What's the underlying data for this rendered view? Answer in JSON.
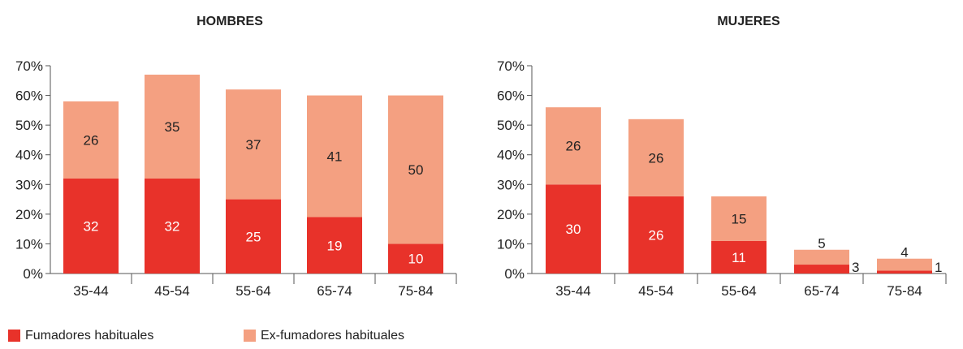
{
  "chart_data": [
    {
      "type": "bar",
      "stacked": true,
      "title": "HOMBRES",
      "categories": [
        "35-44",
        "45-54",
        "55-64",
        "65-74",
        "75-84"
      ],
      "series": [
        {
          "name": "Fumadores habituales",
          "values": [
            32,
            32,
            25,
            19,
            10
          ],
          "labels": [
            "32",
            "32",
            "25",
            "19",
            "10"
          ]
        },
        {
          "name": "Ex-fumadores habituales",
          "values": [
            26,
            35,
            37,
            41,
            50
          ],
          "labels": [
            "26",
            "35",
            "37",
            "41",
            "50"
          ]
        }
      ],
      "ylim": [
        0,
        70
      ],
      "yticks": [
        "0%",
        "10%",
        "20%",
        "30%",
        "40%",
        "50%",
        "60%",
        "70%"
      ],
      "grid": false
    },
    {
      "type": "bar",
      "stacked": true,
      "title": "MUJERES",
      "categories": [
        "35-44",
        "45-54",
        "55-64",
        "65-74",
        "75-84"
      ],
      "series": [
        {
          "name": "Fumadores habituales",
          "values": [
            30,
            26,
            11,
            3,
            1
          ],
          "labels": [
            "30",
            "26",
            "11",
            "3",
            "1"
          ]
        },
        {
          "name": "Ex-fumadores habituales",
          "values": [
            26,
            26,
            15,
            5,
            4
          ],
          "labels": [
            "26",
            "26",
            "15",
            "5",
            "4"
          ]
        }
      ],
      "ylim": [
        0,
        70
      ],
      "yticks": [
        "0%",
        "10%",
        "20%",
        "30%",
        "40%",
        "50%",
        "60%",
        "70%"
      ],
      "grid": false
    }
  ],
  "legend": {
    "placement": "bottom-left",
    "items": [
      {
        "label": "Fumadores habituales",
        "color": "#e8322a"
      },
      {
        "label": "Ex-fumadores habituales",
        "color": "#f4a081"
      }
    ]
  },
  "colors": {
    "smokers": "#e8322a",
    "ex_smokers": "#f4a081",
    "axis": "#555555",
    "text": "#222222",
    "inner_label_light": "#ffffff"
  }
}
